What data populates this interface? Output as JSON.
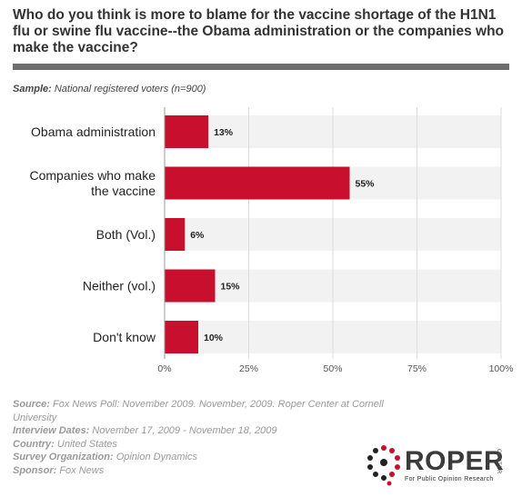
{
  "title": "Who do you think is more to blame for the vaccine shortage of the H1N1 flu or swine flu vaccine--the Obama administration or the companies who make the vaccine?",
  "sample": {
    "label": "Sample:",
    "value": " National registered voters (n=900)"
  },
  "chart_data": {
    "type": "bar",
    "orientation": "horizontal",
    "categories": [
      "Obama administration",
      "Companies who make the vaccine",
      "Both (Vol.)",
      "Neither (vol.)",
      "Don't know"
    ],
    "category_lines": [
      [
        "Obama administration"
      ],
      [
        "Companies who make",
        "the vaccine"
      ],
      [
        "Both (Vol.)"
      ],
      [
        "Neither (vol.)"
      ],
      [
        "Don't know"
      ]
    ],
    "values": [
      13,
      55,
      6,
      15,
      10
    ],
    "value_labels": [
      "13%",
      "55%",
      "6%",
      "15%",
      "10%"
    ],
    "xlim": [
      0,
      100
    ],
    "ticks": [
      0,
      25,
      50,
      75,
      100
    ],
    "tick_labels": [
      "0%",
      "25%",
      "50%",
      "75%",
      "100%"
    ],
    "grid": true,
    "bar_color": "#c8102e",
    "band_color": "#f2f2f2"
  },
  "footer": [
    {
      "label": "Source:",
      "value": " Fox News Poll: November 2009. November, 2009. Roper Center at Cornell University"
    },
    {
      "label": "Interview Dates:",
      "value": " November 17, 2009 - November 18, 2009"
    },
    {
      "label": "Country:",
      "value": " United States"
    },
    {
      "label": "Survey Organization:",
      "value": " Opinion Dynamics"
    },
    {
      "label": "Sponsor:",
      "value": " Fox News"
    }
  ],
  "logo": {
    "word": "ROPER",
    "side": "CENTER",
    "tagline": "For Public Opinion Research",
    "icon": "roper-dots-logo-icon",
    "colors": [
      "#c8102e",
      "#222222"
    ]
  }
}
